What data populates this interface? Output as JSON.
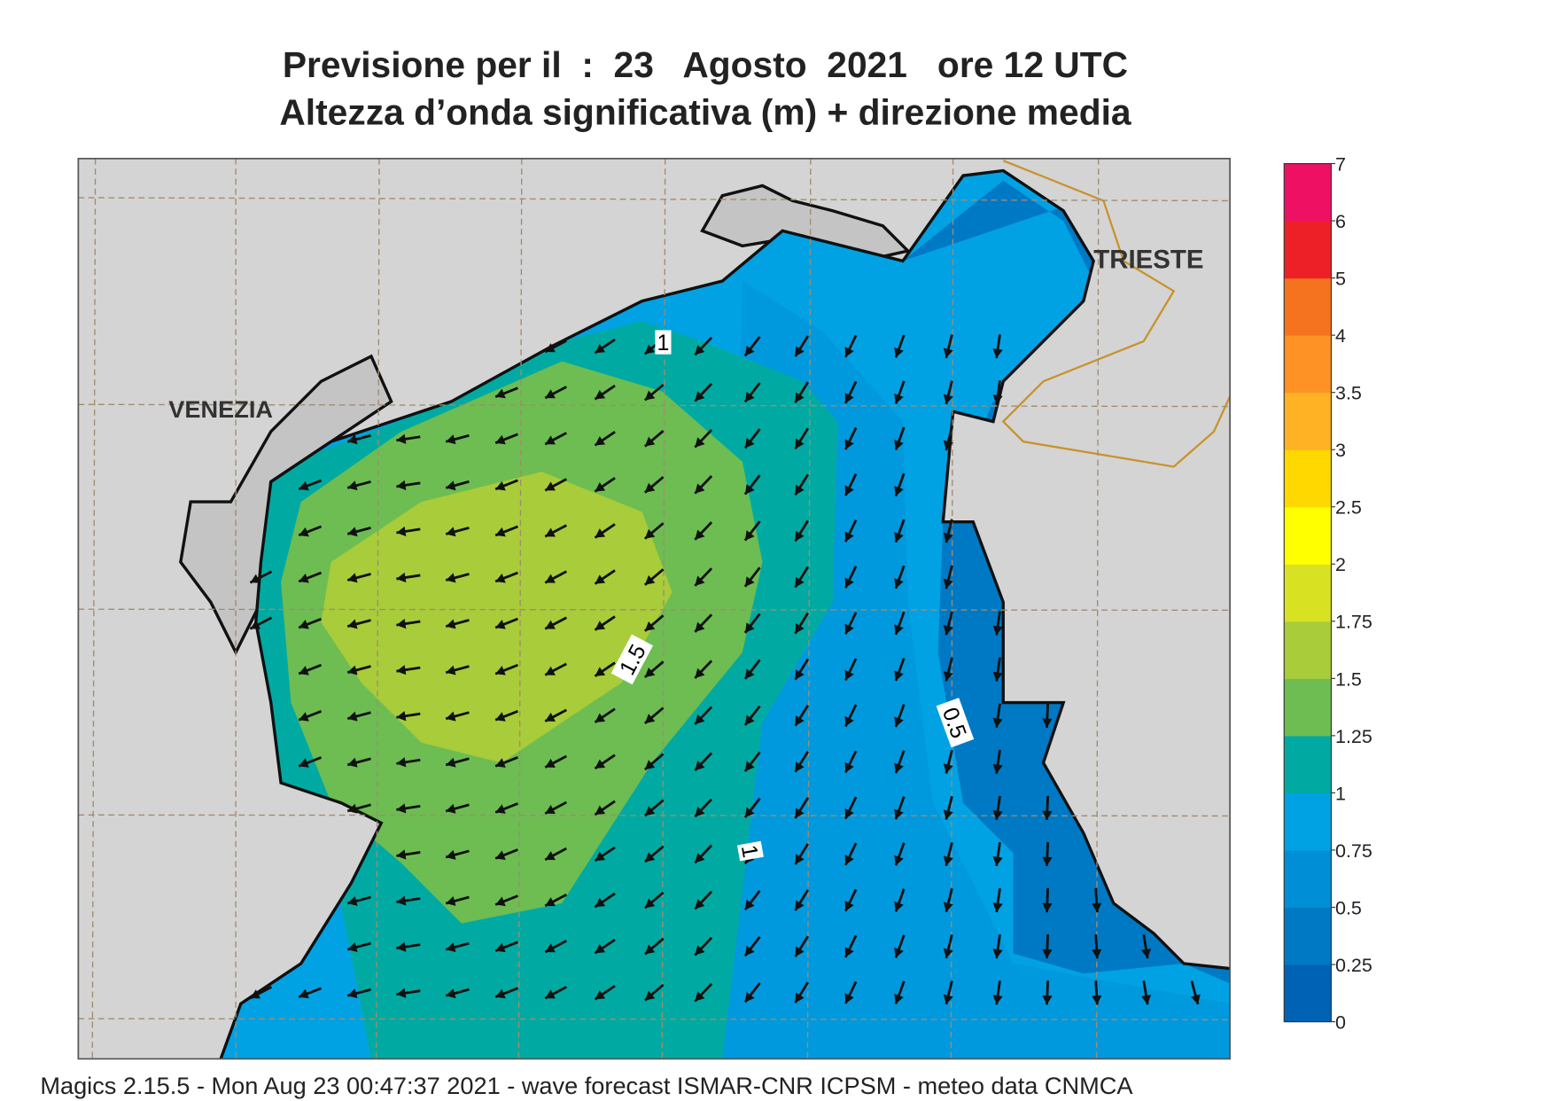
{
  "header": {
    "title": "Previsione per il  :  23   Agosto  2021   ore 12 UTC",
    "subtitle": "Altezza d’onda significativa (m) + direzione media"
  },
  "map": {
    "places": [
      "VENEZIA",
      "TRIESTE"
    ],
    "contour_labels": [
      "1",
      "1.5",
      "0.5",
      "1"
    ]
  },
  "colorbar": {
    "ticks": [
      0,
      0.25,
      0.5,
      0.75,
      1,
      1.25,
      1.5,
      1.75,
      2,
      2.5,
      3,
      3.5,
      4,
      5,
      6,
      7
    ],
    "colors": [
      "#0062b4",
      "#0079c4",
      "#008fd6",
      "#00a2e4",
      "#00aaa2",
      "#6dbd52",
      "#a9cc3a",
      "#d9e123",
      "#ffff00",
      "#ffd800",
      "#ffb224",
      "#ff9224",
      "#f5731f",
      "#ee2027",
      "#ee1163"
    ]
  },
  "footer": "Magics 2.15.5 - Mon Aug 23 00:47:37 2021 - wave forecast  ISMAR-CNR  ICPSM - meteo data   CNMCA"
}
